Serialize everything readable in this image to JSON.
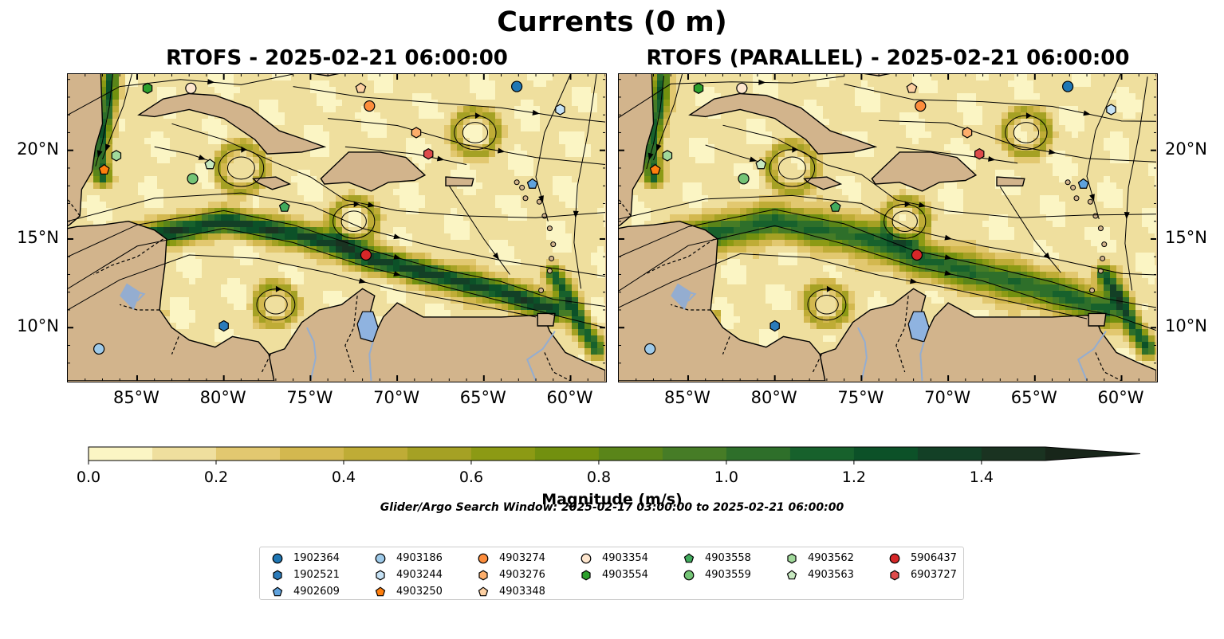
{
  "figure": {
    "suptitle": "Currents (0 m)",
    "panels": [
      {
        "id": "rtofs",
        "title": "RTOFS - 2025-02-21 06:00:00"
      },
      {
        "id": "rtofs-parallel",
        "title": "RTOFS (PARALLEL) - 2025-02-21 06:00:00"
      }
    ],
    "map_extent": {
      "lon": [
        -89,
        -58
      ],
      "lat": [
        7,
        24.3
      ]
    },
    "lon_ticks": [
      {
        "value": -85,
        "label": "85°W"
      },
      {
        "value": -80,
        "label": "80°W"
      },
      {
        "value": -75,
        "label": "75°W"
      },
      {
        "value": -70,
        "label": "70°W"
      },
      {
        "value": -65,
        "label": "65°W"
      },
      {
        "value": -60,
        "label": "60°W"
      }
    ],
    "lat_ticks": [
      {
        "value": 20,
        "label": "20°N"
      },
      {
        "value": 15,
        "label": "15°N"
      },
      {
        "value": 10,
        "label": "10°N"
      }
    ],
    "colorbar": {
      "title": "Magnitude (m/s)",
      "ticks": [
        "0.0",
        "0.2",
        "0.4",
        "0.6",
        "0.8",
        "1.0",
        "1.2",
        "1.4"
      ],
      "tick_values": [
        0.0,
        0.2,
        0.4,
        0.6,
        0.8,
        1.0,
        1.2,
        1.4
      ],
      "range": [
        0,
        1.5
      ],
      "extend": "max",
      "colors": [
        "#fbf5c4",
        "#efdf9e",
        "#e2c870",
        "#d3b84f",
        "#bfac36",
        "#a5a124",
        "#8c9a14",
        "#72900f",
        "#5a8519",
        "#467c26",
        "#2e6f2a",
        "#17612c",
        "#0c5128",
        "#134026",
        "#1a3321",
        "#18261a"
      ]
    },
    "search_window": "Glider/Argo Search Window: 2025-02-17 03:00:00 to 2025-02-21 06:00:00",
    "legend": [
      {
        "id": "1902364",
        "marker": "circle",
        "color": "#1f77b4"
      },
      {
        "id": "1902521",
        "marker": "hexagon",
        "color": "#2b7bba"
      },
      {
        "id": "4902609",
        "marker": "pentagon",
        "color": "#5fa2dd"
      },
      {
        "id": "4903186",
        "marker": "circle",
        "color": "#9ecae9"
      },
      {
        "id": "4903244",
        "marker": "hexagon",
        "color": "#c6e2f5"
      },
      {
        "id": "4903250",
        "marker": "pentagon",
        "color": "#ff7f0e"
      },
      {
        "id": "4903274",
        "marker": "circle",
        "color": "#fd8d3c"
      },
      {
        "id": "4903276",
        "marker": "hexagon",
        "color": "#fdae6b"
      },
      {
        "id": "4903348",
        "marker": "pentagon",
        "color": "#fdd0a2"
      },
      {
        "id": "4903354",
        "marker": "circle",
        "color": "#fee6ce"
      },
      {
        "id": "4903554",
        "marker": "hexagon",
        "color": "#2ca02c"
      },
      {
        "id": "4903558",
        "marker": "pentagon",
        "color": "#41ab5d"
      },
      {
        "id": "4903559",
        "marker": "circle",
        "color": "#74c476"
      },
      {
        "id": "4903562",
        "marker": "hexagon",
        "color": "#a1d99b"
      },
      {
        "id": "4903563",
        "marker": "pentagon",
        "color": "#c7e9c0"
      },
      {
        "id": "5906437",
        "marker": "circle",
        "color": "#d62728"
      },
      {
        "id": "6903727",
        "marker": "hexagon",
        "color": "#de4b4b"
      }
    ],
    "glider_positions": [
      {
        "id": "1902364",
        "lon": -63.1,
        "lat": 23.6
      },
      {
        "id": "4903186",
        "lon": -87.2,
        "lat": 8.8
      },
      {
        "id": "1902521",
        "lon": -80.0,
        "lat": 10.1
      },
      {
        "id": "4902609",
        "lon": -62.2,
        "lat": 18.1
      },
      {
        "id": "4903244",
        "lon": -60.6,
        "lat": 22.3
      },
      {
        "id": "4903250",
        "lon": -86.9,
        "lat": 18.9
      },
      {
        "id": "4903274",
        "lon": -71.6,
        "lat": 22.5
      },
      {
        "id": "4903276",
        "lon": -68.9,
        "lat": 21.0
      },
      {
        "id": "4903348",
        "lon": -72.1,
        "lat": 23.5
      },
      {
        "id": "4903354",
        "lon": -81.9,
        "lat": 23.5
      },
      {
        "id": "4903554",
        "lon": -84.4,
        "lat": 23.5
      },
      {
        "id": "4903558",
        "lon": -76.5,
        "lat": 16.8
      },
      {
        "id": "4903559",
        "lon": -81.8,
        "lat": 18.4
      },
      {
        "id": "4903562",
        "lon": -86.2,
        "lat": 19.7
      },
      {
        "id": "4903563",
        "lon": -80.8,
        "lat": 19.2
      },
      {
        "id": "5906437",
        "lon": -71.8,
        "lat": 14.1
      },
      {
        "id": "6903727",
        "lon": -68.2,
        "lat": 19.8
      }
    ]
  }
}
